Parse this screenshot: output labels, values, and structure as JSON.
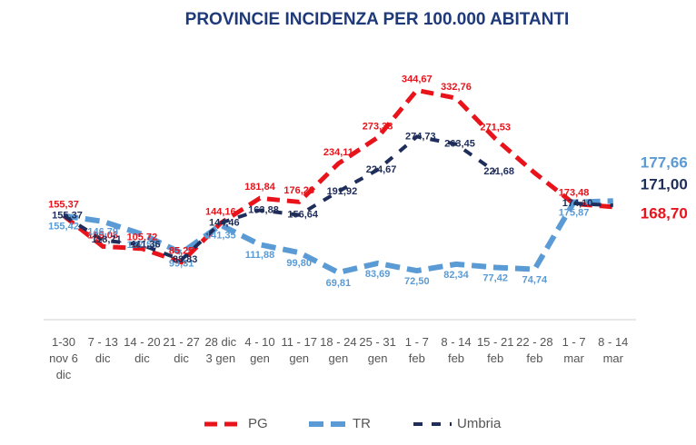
{
  "chart_data": {
    "type": "line",
    "title": "PROVINCIE INCIDENZA PER 100.000 ABITANTI",
    "categories": [
      "1-30 nov 6 dic",
      "7 - 13 dic",
      "14 - 20 dic",
      "21 - 27 dic",
      "28 dic 3 gen",
      "4 - 10 gen",
      "11 - 17 gen",
      "18 - 24 gen",
      "25 - 31 gen",
      "1 - 7 feb",
      "8 - 14 feb",
      "15 - 21 feb",
      "22 - 28 feb",
      "1 - 7 mar",
      "8 - 14 mar"
    ],
    "ylim": [
      0,
      400
    ],
    "series": [
      {
        "name": "PG",
        "color": "#e8131b",
        "values": [
          155.37,
          109.08,
          105.72,
          85.25,
          144.16,
          181.84,
          176.28,
          234.11,
          273.38,
          344.67,
          332.76,
          271.53,
          220,
          173.48,
          168.7
        ],
        "value_labels": [
          "155,37",
          "109,08",
          "105,72",
          "85,25",
          "144,16",
          "181,84",
          "176,28",
          "234,11",
          "273,38",
          "344,67",
          "332,76",
          "271,53",
          null,
          "173,48",
          "168,70"
        ]
      },
      {
        "name": "TR",
        "color": "#5b9bd5",
        "values": [
          155.42,
          146.79,
          127.54,
          99.31,
          141.35,
          111.88,
          99.8,
          69.81,
          83.69,
          72.5,
          82.34,
          77.42,
          74.74,
          175.87,
          177.66
        ],
        "value_labels": [
          "155,42",
          "146,79",
          "127,54",
          "99,31",
          "141,35",
          "111,88",
          "99,80",
          "69,81",
          "83,69",
          "72,50",
          "82,34",
          "77,42",
          "74,74",
          "175,87",
          "177,66"
        ]
      },
      {
        "name": "Umbria",
        "color": "#1f2d5a",
        "values": [
          155.37,
          118.71,
          111.36,
          88.83,
          144.46,
          163.88,
          156.64,
          191.92,
          224.67,
          274.73,
          263.45,
          221.68,
          null,
          174.1,
          171.0
        ],
        "value_labels": [
          "155,37",
          "118,71",
          "111,36",
          "88,83",
          "144,46",
          "163,88",
          "156,64",
          "191,92",
          "224,67",
          "274,73",
          "263,45",
          "221,68",
          null,
          "174,10",
          "171,00"
        ]
      }
    ]
  }
}
